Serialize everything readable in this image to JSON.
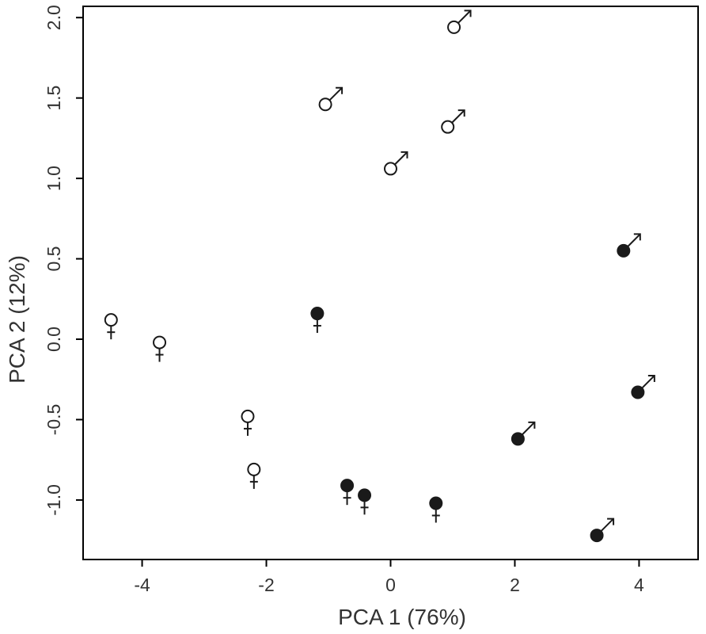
{
  "chart_data": {
    "type": "scatter",
    "xlabel": "PCA 1 (76%)",
    "ylabel": "PCA 2 (12%)",
    "xlim": [
      -4.95,
      4.95
    ],
    "ylim": [
      -1.37,
      2.07
    ],
    "x_ticks": [
      -4,
      -2,
      0,
      2,
      4
    ],
    "y_ticks": [
      -1.0,
      -0.5,
      0.0,
      0.5,
      1.0,
      1.5,
      2.0
    ],
    "x_tick_labels": [
      "-4",
      "-2",
      "0",
      "2",
      "4"
    ],
    "y_tick_labels": [
      "-1.0",
      "-0.5",
      "0.0",
      "0.5",
      "1.0",
      "1.5",
      "2.0"
    ],
    "grid": false,
    "colors": {
      "axis": "#000000",
      "marker": "#1a1a1a",
      "text": "#333333"
    },
    "series": [
      {
        "marker": "open-circle",
        "symbol": "female",
        "points": [
          {
            "x": -4.5,
            "y": 0.12
          },
          {
            "x": -3.72,
            "y": -0.02
          },
          {
            "x": -2.3,
            "y": -0.48
          },
          {
            "x": -2.2,
            "y": -0.81
          }
        ]
      },
      {
        "marker": "open-circle",
        "symbol": "male",
        "points": [
          {
            "x": -1.05,
            "y": 1.46
          },
          {
            "x": 0.0,
            "y": 1.06
          },
          {
            "x": 0.92,
            "y": 1.32
          },
          {
            "x": 1.02,
            "y": 1.94
          }
        ]
      },
      {
        "marker": "filled-circle",
        "symbol": "female",
        "points": [
          {
            "x": -1.18,
            "y": 0.16
          },
          {
            "x": -0.7,
            "y": -0.91
          },
          {
            "x": -0.42,
            "y": -0.97
          },
          {
            "x": 0.73,
            "y": -1.02
          }
        ]
      },
      {
        "marker": "filled-circle",
        "symbol": "male",
        "points": [
          {
            "x": 2.05,
            "y": -0.62
          },
          {
            "x": 3.32,
            "y": -1.22
          },
          {
            "x": 3.75,
            "y": 0.55
          },
          {
            "x": 3.98,
            "y": -0.33
          }
        ]
      }
    ]
  }
}
